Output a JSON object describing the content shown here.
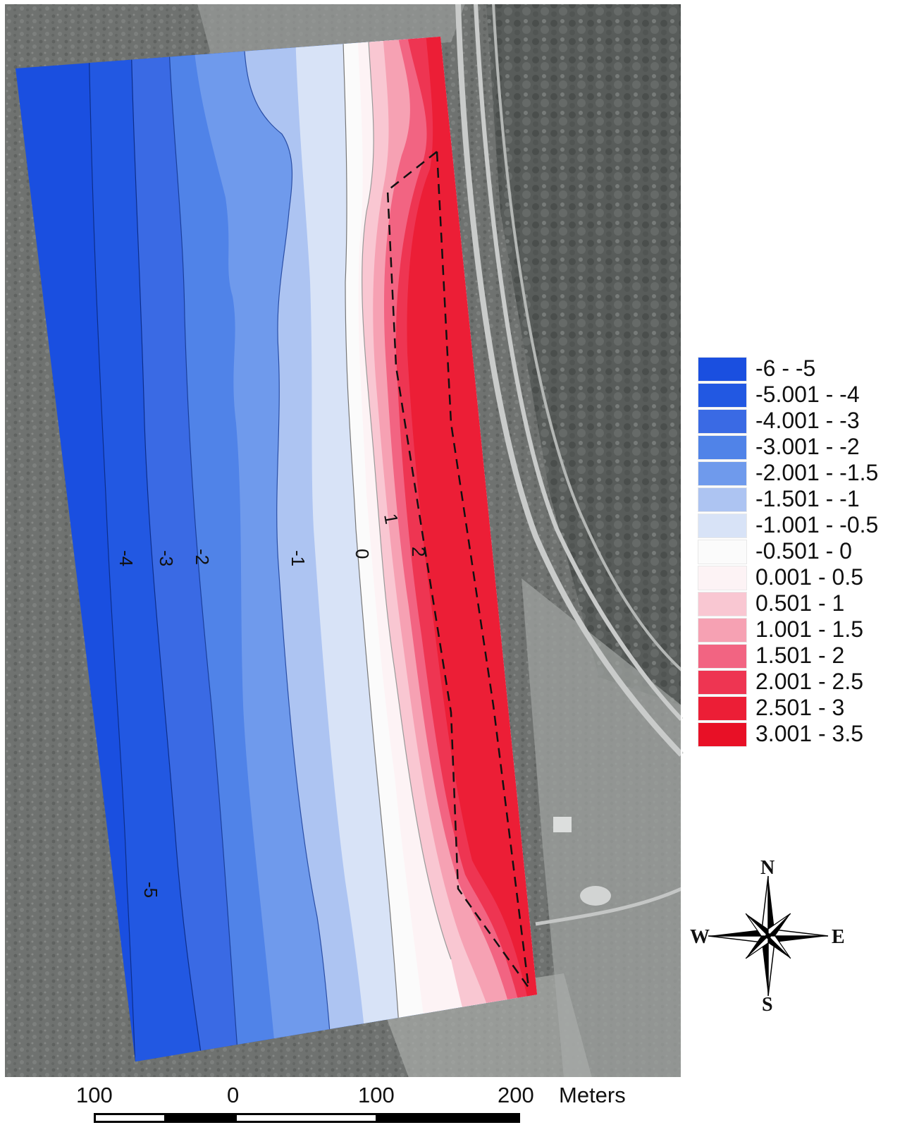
{
  "legend": {
    "classes": [
      {
        "label": "-6 - -5",
        "color": "#1a4fe0"
      },
      {
        "label": "-5.001 - -4",
        "color": "#2258e2"
      },
      {
        "label": "-4.001 - -3",
        "color": "#3a6ae4"
      },
      {
        "label": "-3.001 - -2",
        "color": "#5083e8"
      },
      {
        "label": "-2.001 - -1.5",
        "color": "#6f9aec"
      },
      {
        "label": "-1.501 - -1",
        "color": "#adc4f2"
      },
      {
        "label": "-1.001 - -0.5",
        "color": "#d8e3f7"
      },
      {
        "label": "-0.501 - 0",
        "color": "#fbfbfb"
      },
      {
        "label": "0.001 - 0.5",
        "color": "#fdf3f5"
      },
      {
        "label": "0.501 - 1",
        "color": "#f9c7d2"
      },
      {
        "label": "1.001 - 1.5",
        "color": "#f6a1b3"
      },
      {
        "label": "1.501 - 2",
        "color": "#f26482"
      },
      {
        "label": "2.001 - 2.5",
        "color": "#ee3552"
      },
      {
        "label": "2.501 - 3",
        "color": "#ec1e36"
      },
      {
        "label": "3.001 - 3.5",
        "color": "#e81026"
      }
    ]
  },
  "contour_labels": [
    {
      "value": "-4"
    },
    {
      "value": "-3"
    },
    {
      "value": "-2"
    },
    {
      "value": "-1"
    },
    {
      "value": "0"
    },
    {
      "value": "1"
    },
    {
      "value": "2"
    },
    {
      "value": "-5"
    }
  ],
  "compass": {
    "n": "N",
    "s": "S",
    "e": "E",
    "w": "W"
  },
  "scalebar": {
    "ticks": [
      "100",
      "0",
      "100",
      "200"
    ],
    "unit": "Meters"
  }
}
